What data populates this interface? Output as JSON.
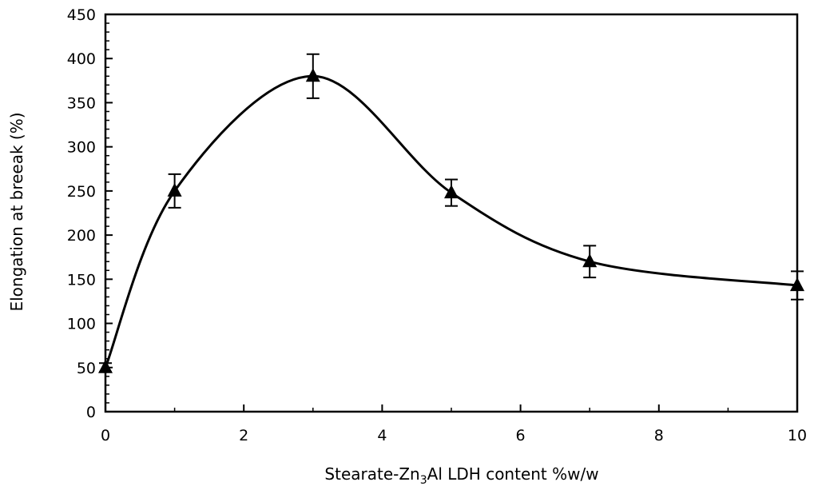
{
  "chart_data": {
    "type": "scatter",
    "title": "",
    "xlabel_prefix": "Stearate-Zn",
    "xlabel_sub": "3",
    "xlabel_suffix": "Al LDH content %w/w",
    "ylabel": "Elongation at breeak (%)",
    "xlim": [
      0,
      10
    ],
    "ylim": [
      0,
      450
    ],
    "x_ticks": [
      0,
      2,
      4,
      6,
      8,
      10
    ],
    "y_ticks": [
      0,
      50,
      100,
      150,
      200,
      250,
      300,
      350,
      400,
      450
    ],
    "grid": false,
    "legend": "none",
    "marker": "triangle",
    "trend_line": "smooth",
    "series": [
      {
        "x": [
          0,
          1,
          3,
          5,
          7,
          10
        ],
        "y": [
          50,
          250,
          380,
          248,
          170,
          143
        ],
        "error": [
          5,
          19,
          25,
          15,
          18,
          16
        ]
      }
    ],
    "colors": {
      "marker": "#000000",
      "line": "#000000",
      "axis": "#000000"
    }
  }
}
